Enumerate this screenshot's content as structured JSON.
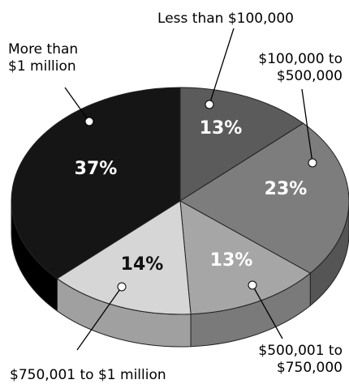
{
  "chart_data": {
    "type": "pie",
    "title": "",
    "slices": [
      {
        "label_lines": [
          "Less than $100,000"
        ],
        "value": 13,
        "value_label": "13%",
        "color": "#5b5b5b",
        "side": "#3a3a3a",
        "text": "#ffffff"
      },
      {
        "label_lines": [
          "$100,000 to",
          "$500,000"
        ],
        "value": 23,
        "value_label": "23%",
        "color": "#7d7d7d",
        "side": "#555555",
        "text": "#ffffff"
      },
      {
        "label_lines": [
          "$500,001 to",
          "$750,000"
        ],
        "value": 13,
        "value_label": "13%",
        "color": "#a6a6a6",
        "side": "#7a7a7a",
        "text": "#ffffff"
      },
      {
        "label_lines": [
          "$750,001 to $1 million"
        ],
        "value": 14,
        "value_label": "14%",
        "color": "#d6d6d6",
        "side": "#a0a0a0",
        "text": "#111111"
      },
      {
        "label_lines": [
          "More than",
          "$1 million"
        ],
        "value": 37,
        "value_label": "37%",
        "color": "#151515",
        "side": "#000000",
        "text": "#ffffff"
      }
    ]
  }
}
